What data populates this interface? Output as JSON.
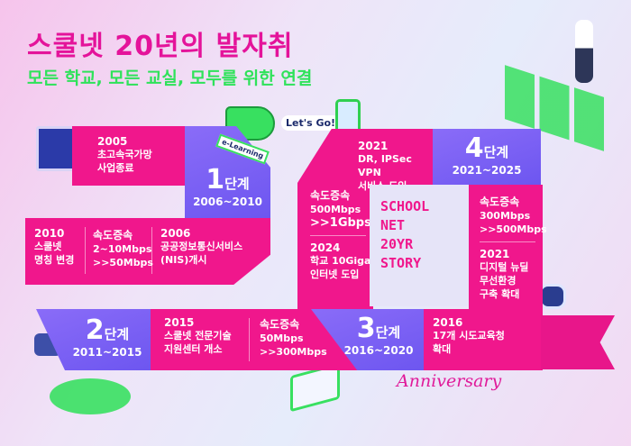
{
  "title": "스쿨넷 20년의 발자취",
  "subtitle": "모든 학교, 모든 교실, 모두를 위한 연결",
  "colors": {
    "pink": "#f0178c",
    "purple": "#7b5ef5",
    "title": "#e4139a",
    "subtitle": "#2fe25a"
  },
  "stages": [
    {
      "num": "1",
      "label": "단계",
      "range": "2006~2010"
    },
    {
      "num": "2",
      "label": "단계",
      "range": "2011~2015"
    },
    {
      "num": "3",
      "label": "단계",
      "range": "2016~2020"
    },
    {
      "num": "4",
      "label": "단계",
      "range": "2021~2025"
    }
  ],
  "events": {
    "e2005": {
      "year": "2005",
      "l1": "초고속국가망",
      "l2": "사업종료"
    },
    "e2010": {
      "year": "2010",
      "l1": "스쿨넷",
      "l2": "명칭 변경"
    },
    "speed1": {
      "year": "속도증속",
      "l1": "2~10Mbps",
      "l2": ">>50Mbps"
    },
    "e2006": {
      "year": "2006",
      "l1": "공공정보통신서비스",
      "l2": "(NIS)개시"
    },
    "e2015": {
      "year": "2015",
      "l1": "스쿨넷 전문기술",
      "l2": "지원센터 개소"
    },
    "speed2": {
      "year": "속도증속",
      "l1": "50Mbps",
      "l2": ">>300Mbps"
    },
    "e2016": {
      "year": "2016",
      "l1": "17개 시도교육청",
      "l2": "확대"
    },
    "speed3": {
      "year": "속도증속",
      "l1": "300Mbps",
      "l2": ">>500Mbps"
    },
    "e2021b": {
      "year": "2021",
      "l1": "디지털 뉴딜",
      "l2": "무선환경",
      "l3": "구축 확대"
    },
    "e2021a": {
      "year": "2021",
      "l1": "DR, IPSec VPN",
      "l2": "서비스 도입"
    },
    "speed4": {
      "year": "속도증속",
      "l1": "500Mbps",
      "l2": ">>1Gbps"
    },
    "e2024": {
      "year": "2024",
      "l1": "학교 10Giga",
      "l2": "인터넷 도입"
    }
  },
  "story": [
    "SCHOOL",
    "NET",
    "20YR",
    "STORY"
  ],
  "illustrations": {
    "megaphone_label": "e-Learning",
    "speech": "Let's Go!"
  },
  "anniversary": "Anniversary"
}
